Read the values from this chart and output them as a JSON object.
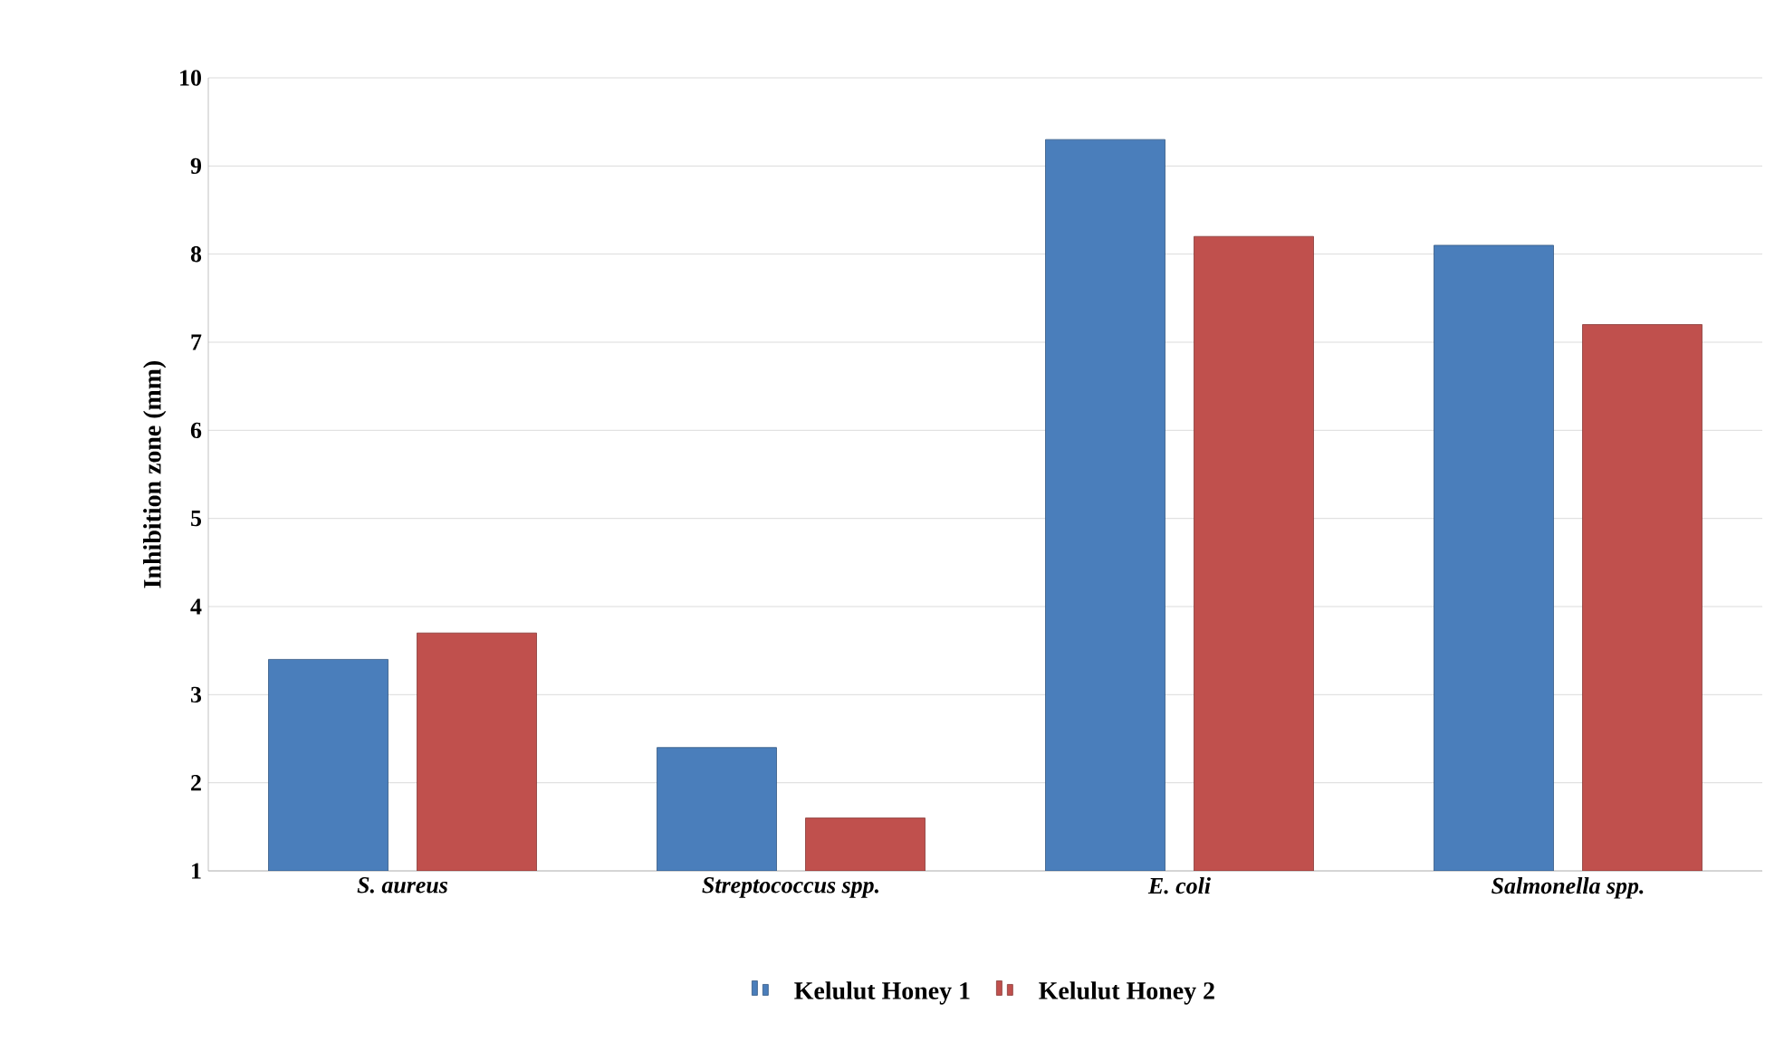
{
  "chart_data": {
    "type": "bar",
    "ylabel": "Inhibition  zone (mm)",
    "categories": [
      "S. aureus",
      "Streptococcus spp.",
      "E. coli",
      "Salmonella spp."
    ],
    "series": [
      {
        "name": "Kelulut Honey 1",
        "color": "#4a7ebb",
        "values": [
          3.4,
          2.4,
          9.3,
          8.1
        ]
      },
      {
        "name": "Kelulut Honey 2",
        "color": "#c0504d",
        "values": [
          3.7,
          1.6,
          8.2,
          7.2
        ]
      }
    ],
    "ylim": [
      1,
      10
    ],
    "yticks": [
      1,
      2,
      3,
      4,
      5,
      6,
      7,
      8,
      9,
      10
    ],
    "grid": "y",
    "legend": "bottom"
  }
}
